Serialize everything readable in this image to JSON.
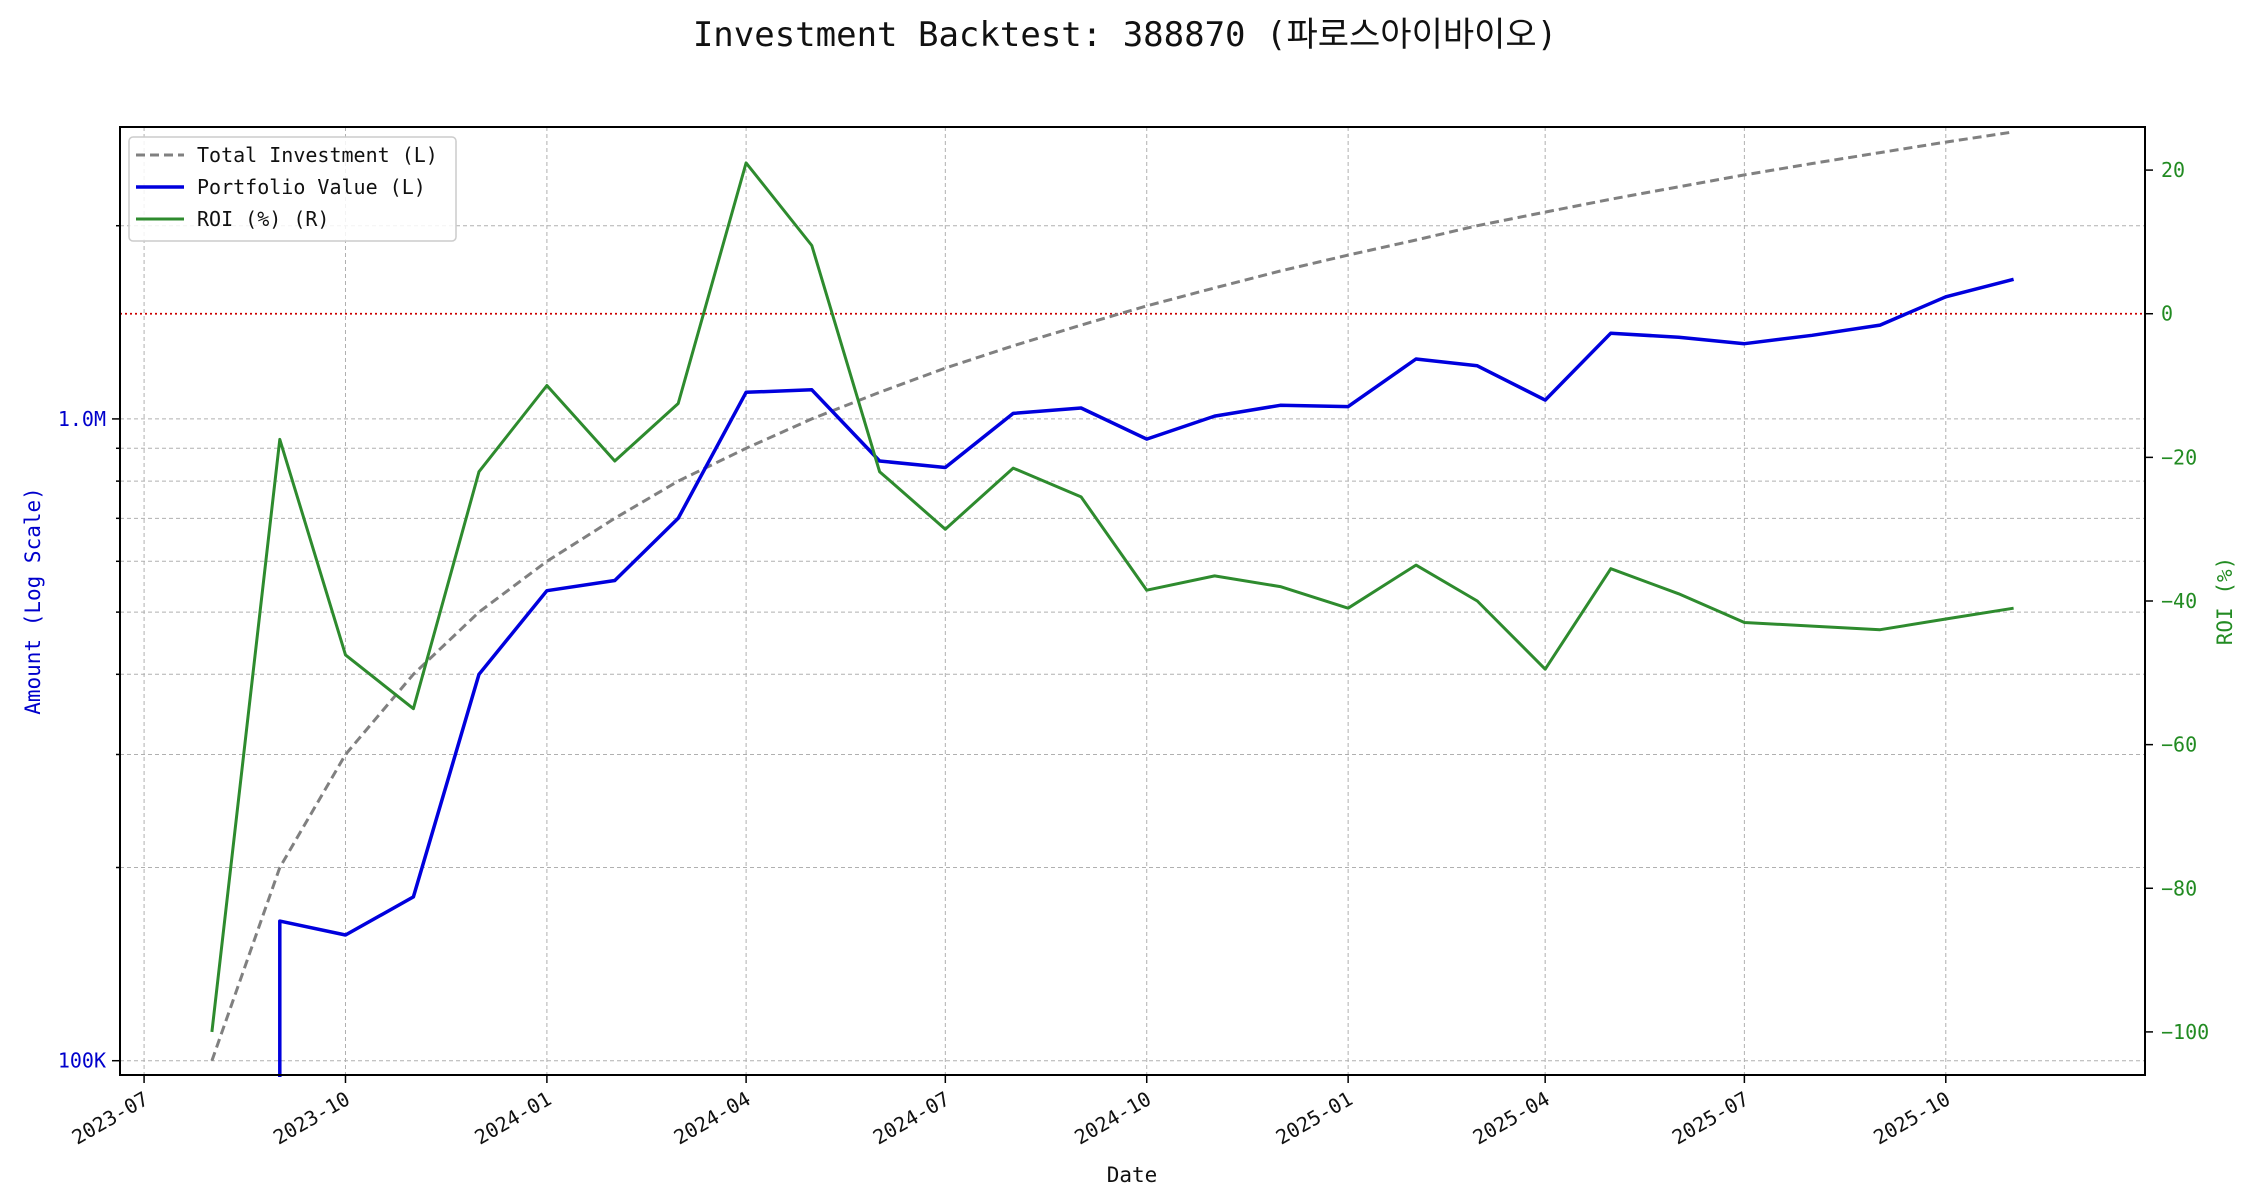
{
  "chart_data": {
    "type": "line",
    "title": "Investment Backtest: 388870 (파로스아이바이오)",
    "xlabel": "Date",
    "ylabel_left": "Amount (Log Scale)",
    "ylabel_right": "ROI (%)",
    "left_scale": "log",
    "left_ylim": [
      95000,
      2850000
    ],
    "left_ticks": [
      {
        "value": 100000,
        "label": "100K"
      },
      {
        "value": 1000000,
        "label": "1.0M"
      }
    ],
    "right_ylim": [
      -106,
      26
    ],
    "right_ticks": [
      {
        "value": 20,
        "label": "20"
      },
      {
        "value": 0,
        "label": "0"
      },
      {
        "value": -20,
        "label": "−20"
      },
      {
        "value": -40,
        "label": "−40"
      },
      {
        "value": -60,
        "label": "−60"
      },
      {
        "value": -80,
        "label": "−80"
      },
      {
        "value": -100,
        "label": "−100"
      }
    ],
    "xlim": [
      "2023-06-20",
      "2025-12-31"
    ],
    "x_ticks": [
      "2023-07",
      "2023-10",
      "2024-01",
      "2024-04",
      "2024-07",
      "2024-10",
      "2025-01",
      "2025-04",
      "2025-07",
      "2025-10"
    ],
    "x": [
      "2023-08-01",
      "2023-09-01",
      "2023-10-01",
      "2023-11-01",
      "2023-12-01",
      "2024-01-01",
      "2024-02-01",
      "2024-03-01",
      "2024-04-01",
      "2024-05-01",
      "2024-06-01",
      "2024-07-01",
      "2024-08-01",
      "2024-09-01",
      "2024-10-01",
      "2024-11-01",
      "2024-12-01",
      "2025-01-01",
      "2025-02-01",
      "2025-03-01",
      "2025-04-01",
      "2025-05-01",
      "2025-06-01",
      "2025-07-01",
      "2025-08-01",
      "2025-09-01",
      "2025-10-01",
      "2025-11-01"
    ],
    "series": [
      {
        "name": "Total Investment (L)",
        "axis": "left",
        "color": "#808080",
        "style": "dashed",
        "values": [
          100000,
          200000,
          300000,
          400000,
          500000,
          600000,
          700000,
          800000,
          900000,
          1000000,
          1100000,
          1200000,
          1300000,
          1400000,
          1500000,
          1600000,
          1700000,
          1800000,
          1900000,
          2000000,
          2100000,
          2200000,
          2300000,
          2400000,
          2500000,
          2600000,
          2700000,
          2800000
        ]
      },
      {
        "name": "Portfolio Value (L)",
        "axis": "left",
        "color": "#0000dd",
        "style": "solid",
        "start_value": 0,
        "values": [
          null,
          165000,
          157000,
          180000,
          400000,
          540000,
          560000,
          700000,
          1100000,
          1110000,
          860000,
          840000,
          1020000,
          1040000,
          930000,
          1010000,
          1050000,
          1045000,
          1240000,
          1210000,
          1070000,
          1360000,
          1340000,
          1310000,
          1350000,
          1400000,
          1550000,
          1650000
        ]
      },
      {
        "name": "ROI (%) (R)",
        "axis": "right",
        "color": "#2e8b2e",
        "style": "solid",
        "values": [
          -100,
          -17.5,
          -47.5,
          -55,
          -22,
          -10,
          -20.5,
          -12.5,
          21,
          9.5,
          -22,
          -30,
          -21.5,
          -25.5,
          -38.5,
          -36.5,
          -38,
          -41,
          -35,
          -40,
          -49.5,
          -35.5,
          -39,
          -43,
          -43.5,
          -44,
          -42.5,
          -41
        ]
      }
    ],
    "reference_line": {
      "axis": "right",
      "value": 0,
      "color": "#cc0000",
      "style": "dotted"
    },
    "grid": true,
    "legend_position": "top-left"
  }
}
